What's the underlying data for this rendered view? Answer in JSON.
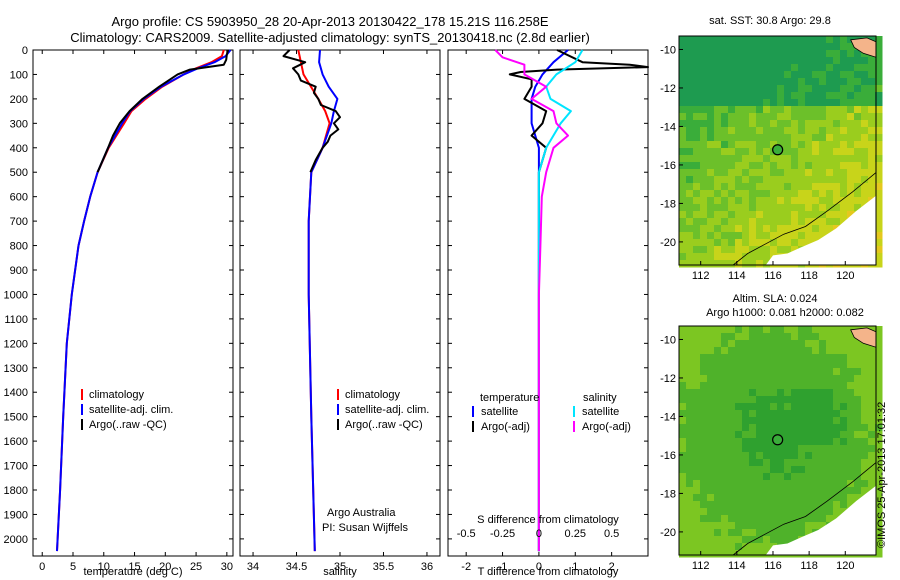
{
  "header": {
    "line1": "Argo profile: CS 5903950_28 20-Apr-2013 20130422_178 15.21S 116.258E",
    "line2": "Climatology: CARS2009. Satellite-adjusted climatology: synTS_20130418.nc (2.8d earlier)"
  },
  "colors": {
    "clim": "#ff0000",
    "sat": "#0000ff",
    "argo": "#000000",
    "sal_sat": "#00e5ff",
    "sal_argo": "#ff00ff",
    "land": "#f4b48a"
  },
  "depth_axis": {
    "ticks": [
      0,
      100,
      200,
      300,
      400,
      500,
      600,
      700,
      800,
      900,
      1000,
      1100,
      1200,
      1300,
      1400,
      1500,
      1600,
      1700,
      1800,
      1900,
      2000
    ],
    "range": [
      0,
      2070
    ]
  },
  "chart_data": [
    {
      "type": "line",
      "name": "temperature",
      "xlabel": "temperature (deg C)",
      "xlim": [
        -1.5,
        31
      ],
      "xticks": [
        0,
        5,
        10,
        15,
        20,
        25,
        30
      ],
      "xtick_labels": [
        "0",
        "5",
        "10",
        "15",
        "20",
        "25",
        "30"
      ],
      "legend": [
        "climatology",
        "satellite-adj. clim.",
        "Argo(..raw -QC)"
      ],
      "series": [
        {
          "name": "climatology",
          "depth": [
            0,
            25,
            50,
            75,
            100,
            150,
            200,
            250,
            300,
            400,
            500,
            600,
            700,
            800,
            1000,
            1200,
            1500,
            1800,
            2050
          ],
          "values": [
            29.5,
            29.2,
            27.5,
            25,
            23,
            19.5,
            16.8,
            14.5,
            13.3,
            10.8,
            9.0,
            7.8,
            6.8,
            5.9,
            4.8,
            4.0,
            3.4,
            2.9,
            2.4
          ]
        },
        {
          "name": "satellite-adj. clim.",
          "depth": [
            0,
            25,
            50,
            75,
            100,
            150,
            200,
            250,
            300,
            400,
            500,
            600,
            700,
            800,
            1000,
            1200,
            1500,
            1800,
            2050
          ],
          "values": [
            30.6,
            29.8,
            28.0,
            25.3,
            23,
            19.3,
            16.5,
            14.3,
            13.0,
            10.7,
            9.0,
            7.8,
            6.8,
            5.9,
            4.8,
            4.0,
            3.4,
            2.9,
            2.4
          ]
        },
        {
          "name": "Argo(..raw -QC)",
          "depth": [
            0,
            20,
            40,
            60,
            80,
            100,
            150,
            200,
            250,
            300,
            350,
            400,
            500
          ],
          "values": [
            30.2,
            30.0,
            29.9,
            29.5,
            24,
            22,
            19,
            16.3,
            14.2,
            12.6,
            11.5,
            10.7,
            9.0
          ]
        }
      ]
    },
    {
      "type": "line",
      "name": "salinity",
      "xlabel": "salinity",
      "xlim": [
        33.85,
        36.15
      ],
      "xticks": [
        34,
        34.5,
        35,
        35.5,
        36
      ],
      "xtick_labels": [
        "34",
        "34.5",
        "35",
        "35.5",
        "36"
      ],
      "legend": [
        "climatology",
        "satellite-adj. clim.",
        "Argo(..raw -QC)"
      ],
      "annotation": [
        "Argo Australia",
        "PI: Susan Wijffels"
      ],
      "series": [
        {
          "name": "climatology",
          "depth": [
            0,
            50,
            100,
            200,
            250,
            300,
            400,
            500,
            700,
            1000,
            1500,
            2050
          ],
          "values": [
            34.52,
            34.55,
            34.58,
            34.75,
            34.83,
            34.88,
            34.8,
            34.67,
            34.64,
            34.64,
            34.67,
            34.71
          ]
        },
        {
          "name": "satellite-adj. clim.",
          "depth": [
            0,
            50,
            100,
            150,
            200,
            250,
            300,
            400,
            500,
            700,
            1000,
            1500,
            2050
          ],
          "values": [
            34.77,
            34.76,
            34.8,
            34.87,
            34.97,
            34.93,
            34.9,
            34.8,
            34.67,
            34.64,
            34.64,
            34.67,
            34.71
          ]
        },
        {
          "name": "Argo(..raw -QC)",
          "depth": [
            0,
            25,
            50,
            75,
            100,
            125,
            150,
            175,
            200,
            225,
            250,
            275,
            300,
            325,
            350,
            375,
            400,
            450,
            500
          ],
          "values": [
            34.42,
            34.35,
            34.6,
            34.46,
            34.52,
            34.55,
            34.72,
            34.7,
            34.75,
            34.78,
            34.95,
            35.0,
            34.93,
            34.98,
            34.89,
            34.86,
            34.8,
            34.72,
            34.66
          ]
        }
      ]
    },
    {
      "type": "line",
      "name": "difference",
      "xlabel": "T difference from climatology",
      "xlim": [
        -2.5,
        3
      ],
      "xticks": [
        -2,
        -1,
        0,
        1,
        2
      ],
      "xtick_labels": [
        "-2",
        "-1",
        "0",
        "1",
        "2"
      ],
      "top_axis_label": "S difference from climatology",
      "top_ticks": [
        -0.5,
        -0.25,
        0,
        0.25,
        0.5
      ],
      "top_tick_labels": [
        "-0.5",
        "-0.25",
        "0",
        "0.25",
        "0.5"
      ],
      "legend_temperature": [
        "temperature",
        "satellite",
        "Argo(-adj)"
      ],
      "legend_salinity": [
        "salinity",
        "satellite",
        "Argo(-adj)"
      ],
      "series": [
        {
          "name": "T satellite",
          "depth": [
            0,
            50,
            100,
            150,
            200,
            300,
            400,
            500,
            600,
            800,
            1000,
            2050
          ],
          "values": [
            0.8,
            0.4,
            0.1,
            -0.1,
            -0.2,
            -0.2,
            0,
            0,
            0,
            0,
            0,
            0
          ]
        },
        {
          "name": "T Argo(-adj)",
          "depth": [
            0,
            50,
            60,
            70,
            80,
            90,
            100,
            120,
            150,
            200,
            250,
            300,
            350,
            400,
            500,
            600,
            800,
            1000,
            2050
          ],
          "values": [
            0.5,
            1.2,
            2.5,
            3.0,
            0.5,
            -0.5,
            -0.8,
            -0.2,
            -0.2,
            -0.4,
            0.2,
            0.1,
            -0.2,
            0.2,
            0,
            0,
            0,
            0,
            0
          ]
        },
        {
          "name": "S satellite",
          "depth": [
            0,
            50,
            100,
            150,
            200,
            250,
            300,
            400,
            500,
            600,
            800,
            1000,
            2050
          ],
          "values": [
            0.3,
            0.25,
            0.12,
            0.05,
            0.08,
            0.22,
            0.15,
            0.05,
            0,
            0,
            0,
            0,
            0
          ]
        },
        {
          "name": "S Argo(-adj)",
          "depth": [
            0,
            30,
            60,
            100,
            150,
            200,
            250,
            300,
            350,
            400,
            500,
            600,
            800,
            1000,
            2050
          ],
          "values": [
            -0.3,
            -0.25,
            -0.1,
            -0.1,
            0.05,
            -0.05,
            0.1,
            0.12,
            0.2,
            0.1,
            0.05,
            0.02,
            0.01,
            0,
            0
          ]
        }
      ]
    },
    {
      "type": "heatmap",
      "name": "sst_map",
      "title": "sat. SST: 30.8 Argo: 29.8",
      "xticks": [
        112,
        114,
        116,
        118,
        120
      ],
      "xtick_labels": [
        "112",
        "114",
        "116",
        "118",
        "120"
      ],
      "yticks": [
        -10,
        -12,
        -14,
        -16,
        -18,
        -20
      ],
      "ytick_labels": [
        "-10",
        "-12",
        "-14",
        "-16",
        "-18",
        "-20"
      ],
      "xlim": [
        110.8,
        121.7
      ],
      "ylim": [
        -21.2,
        -9.3
      ],
      "float_location": [
        116.258,
        -15.21
      ]
    },
    {
      "type": "heatmap",
      "name": "sla_map",
      "title_lines": [
        "Altim. SLA: 0.024",
        "Argo h1000: 0.081 h2000: 0.082"
      ],
      "xticks": [
        112,
        114,
        116,
        118,
        120
      ],
      "xtick_labels": [
        "112",
        "114",
        "116",
        "118",
        "120"
      ],
      "yticks": [
        -10,
        -12,
        -14,
        -16,
        -18,
        -20
      ],
      "ytick_labels": [
        "-10",
        "-12",
        "-14",
        "-16",
        "-18",
        "-20"
      ],
      "xlim": [
        110.8,
        121.7
      ],
      "ylim": [
        -21.2,
        -9.3
      ],
      "float_location": [
        116.258,
        -15.21
      ]
    }
  ],
  "watermark": "©IMOS 25-Apr-2013 17:01:32"
}
